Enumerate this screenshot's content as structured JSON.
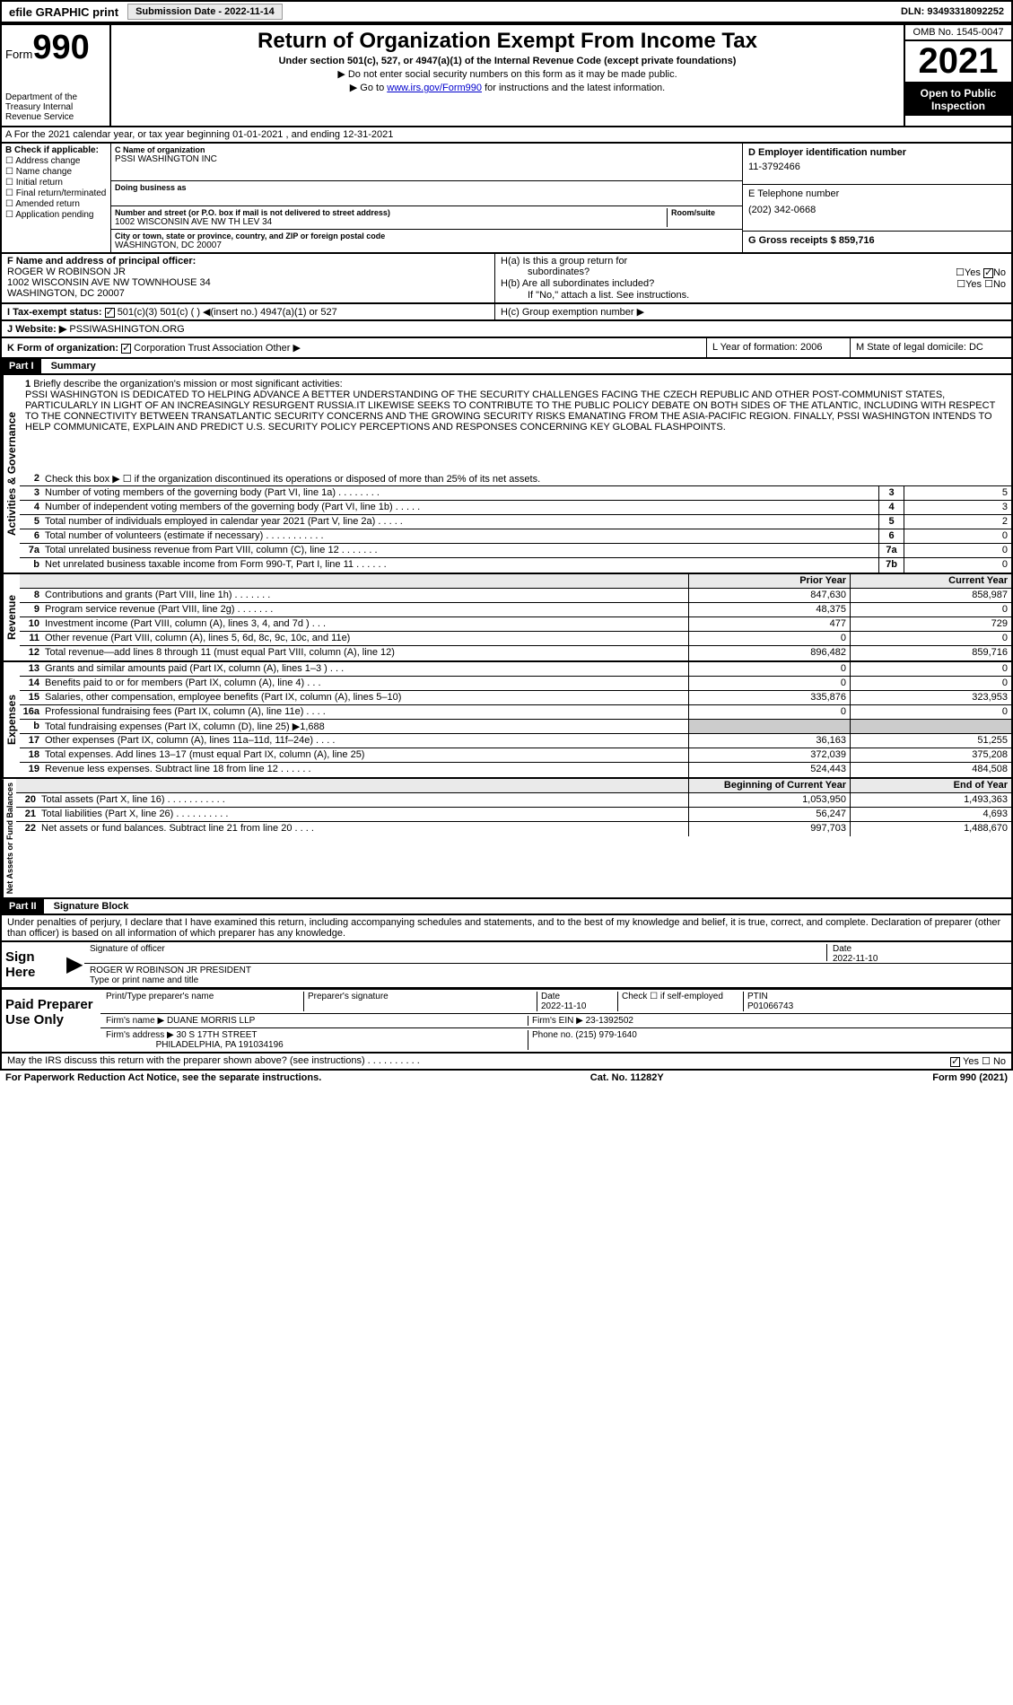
{
  "top_bar": {
    "efile": "efile GRAPHIC print",
    "submission_label": "Submission Date - 2022-11-14",
    "dln": "DLN: 93493318092252"
  },
  "header": {
    "form_word": "Form",
    "form_number": "990",
    "title": "Return of Organization Exempt From Income Tax",
    "subtitle": "Under section 501(c), 527, or 4947(a)(1) of the Internal Revenue Code (except private foundations)",
    "note1": "▶ Do not enter social security numbers on this form as it may be made public.",
    "note2_prefix": "▶ Go to ",
    "note2_link": "www.irs.gov/Form990",
    "note2_suffix": " for instructions and the latest information.",
    "dept": "Department of the Treasury Internal Revenue Service",
    "omb": "OMB No. 1545-0047",
    "year": "2021",
    "inspect": "Open to Public Inspection"
  },
  "row_a": "A For the 2021 calendar year, or tax year beginning 01-01-2021   , and ending 12-31-2021",
  "section_b": {
    "label": "B Check if applicable:",
    "opts": [
      "Address change",
      "Name change",
      "Initial return",
      "Final return/terminated",
      "Amended return",
      "Application pending"
    ]
  },
  "section_c": {
    "name_label": "C Name of organization",
    "name": "PSSI WASHINGTON INC",
    "dba_label": "Doing business as",
    "addr_label": "Number and street (or P.O. box if mail is not delivered to street address)",
    "room_label": "Room/suite",
    "addr": "1002 WISCONSIN AVE NW TH LEV 34",
    "city_label": "City or town, state or province, country, and ZIP or foreign postal code",
    "city": "WASHINGTON, DC  20007"
  },
  "section_d": {
    "ein_label": "D Employer identification number",
    "ein": "11-3792466",
    "phone_label": "E Telephone number",
    "phone": "(202) 342-0668",
    "gross_label": "G Gross receipts $ 859,716"
  },
  "section_f": {
    "label": "F  Name and address of principal officer:",
    "name": "ROGER W ROBINSON JR",
    "addr": "1002 WISCONSIN AVE NW TOWNHOUSE 34",
    "city": "WASHINGTON, DC  20007"
  },
  "section_h": {
    "ha": "H(a)  Is this a group return for",
    "ha2": "subordinates?",
    "hb": "H(b)  Are all subordinates included?",
    "hb_note": "If \"No,\" attach a list. See instructions.",
    "hc": "H(c)  Group exemption number ▶",
    "yes": "Yes",
    "no": "No"
  },
  "section_i": {
    "label": "I   Tax-exempt status:",
    "opts": "501(c)(3)       501(c) (  ) ◀(insert no.)       4947(a)(1) or       527"
  },
  "section_j": {
    "label": "J   Website: ▶",
    "value": "PSSIWASHINGTON.ORG"
  },
  "section_k": {
    "label": "K Form of organization:",
    "opts": "Corporation      Trust      Association      Other ▶"
  },
  "section_l": {
    "label": "L Year of formation: 2006"
  },
  "section_m": {
    "label": "M State of legal domicile: DC"
  },
  "part1": {
    "header": "Part I",
    "title": "Summary",
    "side_ag": "Activities & Governance",
    "side_rev": "Revenue",
    "side_exp": "Expenses",
    "side_na": "Net Assets or Fund Balances",
    "line1_label": "Briefly describe the organization's mission or most significant activities:",
    "mission": "PSSI WASHINGTON IS DEDICATED TO HELPING ADVANCE A BETTER UNDERSTANDING OF THE SECURITY CHALLENGES FACING THE CZECH REPUBLIC AND OTHER POST-COMMUNIST STATES, PARTICULARLY IN LIGHT OF AN INCREASINGLY RESURGENT RUSSIA.IT LIKEWISE SEEKS TO CONTRIBUTE TO THE PUBLIC POLICY DEBATE ON BOTH SIDES OF THE ATLANTIC, INCLUDING WITH RESPECT TO THE CONNECTIVITY BETWEEN TRANSATLANTIC SECURITY CONCERNS AND THE GROWING SECURITY RISKS EMANATING FROM THE ASIA-PACIFIC REGION. FINALLY, PSSI WASHINGTON INTENDS TO HELP COMMUNICATE, EXPLAIN AND PREDICT U.S. SECURITY POLICY PERCEPTIONS AND RESPONSES CONCERNING KEY GLOBAL FLASHPOINTS.",
    "line2": "Check this box ▶ ☐ if the organization discontinued its operations or disposed of more than 25% of its net assets.",
    "rows_ag": [
      {
        "no": "3",
        "txt": "Number of voting members of the governing body (Part VI, line 1a)   .   .   .   .   .   .   .   .",
        "box": "3",
        "val": "5"
      },
      {
        "no": "4",
        "txt": "Number of independent voting members of the governing body (Part VI, line 1b)  .   .   .   .   .",
        "box": "4",
        "val": "3"
      },
      {
        "no": "5",
        "txt": "Total number of individuals employed in calendar year 2021 (Part V, line 2a)   .   .   .   .   .",
        "box": "5",
        "val": "2"
      },
      {
        "no": "6",
        "txt": "Total number of volunteers (estimate if necessary)   .   .   .   .   .   .   .   .   .   .   .",
        "box": "6",
        "val": "0"
      },
      {
        "no": "7a",
        "txt": "Total unrelated business revenue from Part VIII, column (C), line 12   .   .   .   .   .   .   .",
        "box": "7a",
        "val": "0"
      },
      {
        "no": "b",
        "txt": "Net unrelated business taxable income from Form 990-T, Part I, line 11   .   .   .   .   .   .",
        "box": "7b",
        "val": "0"
      }
    ],
    "prior_year": "Prior Year",
    "current_year": "Current Year",
    "rows_rev": [
      {
        "no": "8",
        "txt": "Contributions and grants (Part VIII, line 1h)   .   .   .   .   .   .   .",
        "py": "847,630",
        "cy": "858,987"
      },
      {
        "no": "9",
        "txt": "Program service revenue (Part VIII, line 2g)   .   .   .   .   .   .   .",
        "py": "48,375",
        "cy": "0"
      },
      {
        "no": "10",
        "txt": "Investment income (Part VIII, column (A), lines 3, 4, and 7d )   .   .   .",
        "py": "477",
        "cy": "729"
      },
      {
        "no": "11",
        "txt": "Other revenue (Part VIII, column (A), lines 5, 6d, 8c, 9c, 10c, and 11e)",
        "py": "0",
        "cy": "0"
      },
      {
        "no": "12",
        "txt": "Total revenue—add lines 8 through 11 (must equal Part VIII, column (A), line 12)",
        "py": "896,482",
        "cy": "859,716"
      }
    ],
    "rows_exp": [
      {
        "no": "13",
        "txt": "Grants and similar amounts paid (Part IX, column (A), lines 1–3 )   .   .   .",
        "py": "0",
        "cy": "0"
      },
      {
        "no": "14",
        "txt": "Benefits paid to or for members (Part IX, column (A), line 4)   .   .   .",
        "py": "0",
        "cy": "0"
      },
      {
        "no": "15",
        "txt": "Salaries, other compensation, employee benefits (Part IX, column (A), lines 5–10)",
        "py": "335,876",
        "cy": "323,953"
      },
      {
        "no": "16a",
        "txt": "Professional fundraising fees (Part IX, column (A), line 11e)   .   .   .   .",
        "py": "0",
        "cy": "0"
      },
      {
        "no": "b",
        "txt": "Total fundraising expenses (Part IX, column (D), line 25) ▶1,688",
        "py": "",
        "cy": "",
        "shaded": true
      },
      {
        "no": "17",
        "txt": "Other expenses (Part IX, column (A), lines 11a–11d, 11f–24e)   .   .   .   .",
        "py": "36,163",
        "cy": "51,255"
      },
      {
        "no": "18",
        "txt": "Total expenses. Add lines 13–17 (must equal Part IX, column (A), line 25)",
        "py": "372,039",
        "cy": "375,208"
      },
      {
        "no": "19",
        "txt": "Revenue less expenses. Subtract line 18 from line 12   .   .   .   .   .   .",
        "py": "524,443",
        "cy": "484,508"
      }
    ],
    "beg_year": "Beginning of Current Year",
    "end_year": "End of Year",
    "rows_na": [
      {
        "no": "20",
        "txt": "Total assets (Part X, line 16)   .   .   .   .   .   .   .   .   .   .   .",
        "py": "1,053,950",
        "cy": "1,493,363"
      },
      {
        "no": "21",
        "txt": "Total liabilities (Part X, line 26)   .   .   .   .   .   .   .   .   .   .",
        "py": "56,247",
        "cy": "4,693"
      },
      {
        "no": "22",
        "txt": "Net assets or fund balances. Subtract line 21 from line 20   .   .   .   .",
        "py": "997,703",
        "cy": "1,488,670"
      }
    ]
  },
  "part2": {
    "header": "Part II",
    "title": "Signature Block",
    "decl": "Under penalties of perjury, I declare that I have examined this return, including accompanying schedules and statements, and to the best of my knowledge and belief, it is true, correct, and complete. Declaration of preparer (other than officer) is based on all information of which preparer has any knowledge.",
    "sign_here": "Sign Here",
    "sig_officer": "Signature of officer",
    "date_label": "Date",
    "sig_date": "2022-11-10",
    "officer_name": "ROGER W ROBINSON JR PRESIDENT",
    "type_name": "Type or print name and title",
    "paid_prep": "Paid Preparer Use Only",
    "prep_name_label": "Print/Type preparer's name",
    "prep_sig_label": "Preparer's signature",
    "prep_date": "2022-11-10",
    "self_emp": "Check ☐ if self-employed",
    "ptin_label": "PTIN",
    "ptin": "P01066743",
    "firm_name_label": "Firm's name    ▶",
    "firm_name": "DUANE MORRIS LLP",
    "firm_ein_label": "Firm's EIN ▶",
    "firm_ein": "23-1392502",
    "firm_addr_label": "Firm's address ▶",
    "firm_addr": "30 S 17TH STREET",
    "firm_city": "PHILADELPHIA, PA  191034196",
    "firm_phone_label": "Phone no.",
    "firm_phone": "(215) 979-1640",
    "discuss": "May the IRS discuss this return with the preparer shown above? (see instructions)   .   .   .   .   .   .   .   .   .   .",
    "discuss_yes": "Yes",
    "discuss_no": "No"
  },
  "footer": {
    "pra": "For Paperwork Reduction Act Notice, see the separate instructions.",
    "cat": "Cat. No. 11282Y",
    "form": "Form 990 (2021)"
  }
}
